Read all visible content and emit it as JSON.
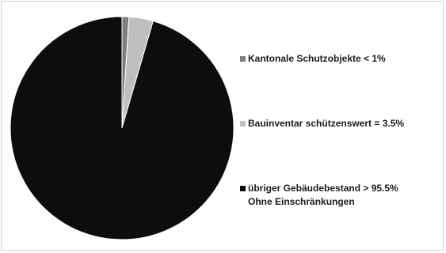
{
  "chart_data": {
    "type": "pie",
    "title": "",
    "slices": [
      {
        "label": "Kantonale Schutzobjekte < 1%",
        "value": 1.0,
        "color": "#7f7f7f"
      },
      {
        "label": "Bauinventar schützenswert = 3.5%",
        "value": 3.5,
        "color": "#bfbfbf"
      },
      {
        "label": "übriger Gebäudebestand > 95.5%",
        "label_line2": "Ohne Einschränkungen",
        "value": 95.5,
        "color": "#0d0d0d"
      }
    ],
    "legend_position": "right",
    "start_angle_deg": 0,
    "direction": "clockwise"
  }
}
